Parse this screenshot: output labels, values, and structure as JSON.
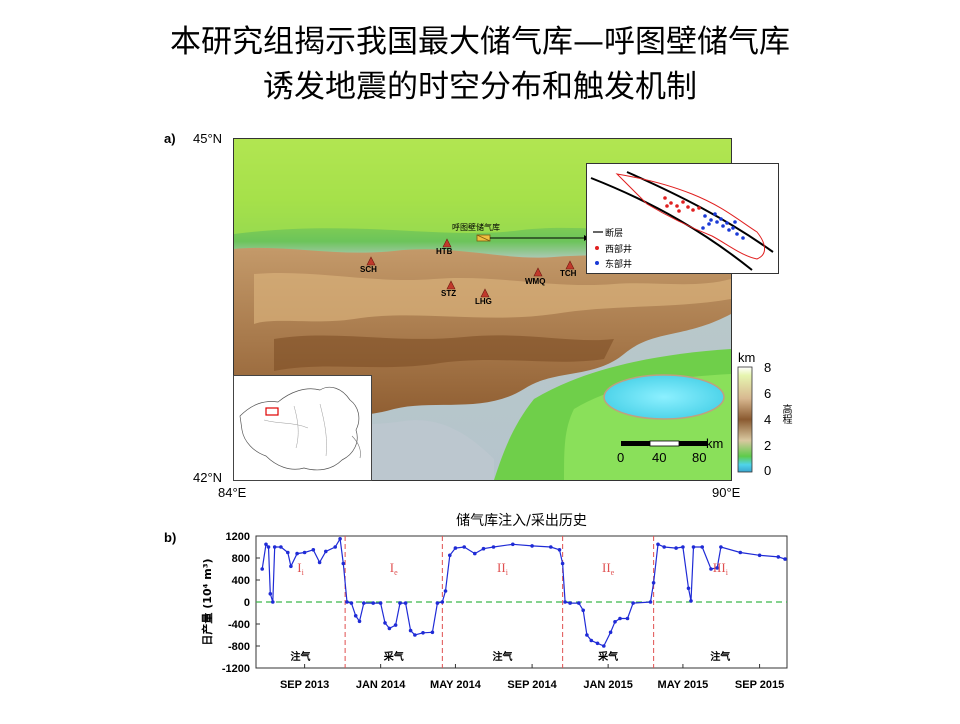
{
  "title": {
    "line1": "本研究组揭示我国最大储气库—呼图壁储气库",
    "line2": "诱发地震的时空分布和触发机制"
  },
  "panel_a": {
    "label": "a)",
    "lat_top": "45°N",
    "lat_bottom": "42°N",
    "lon_left": "84°E",
    "lon_right": "90°E",
    "reservoir_label": "呼图壁储气库",
    "stations": [
      {
        "code": "SCH"
      },
      {
        "code": "HTB"
      },
      {
        "code": "STZ"
      },
      {
        "code": "LHG"
      },
      {
        "code": "WMQ"
      },
      {
        "code": "TCH"
      }
    ],
    "inset_legend": {
      "fault": "断层",
      "west_wells": "西部井",
      "east_wells": "东部井"
    },
    "elevation_bar": {
      "unit": "km",
      "title": "高程",
      "ticks": [
        "8",
        "6",
        "4",
        "2",
        "0"
      ]
    },
    "scale_bar": {
      "unit": "km",
      "ticks": [
        "0",
        "40",
        "80"
      ]
    },
    "colors": {
      "station": "#c0392b",
      "west_wells": "#e02020",
      "east_wells": "#1a3ad6",
      "lake": "#66e0f0"
    }
  },
  "panel_b": {
    "label": "b)",
    "title": "储气库注入/采出历史",
    "ylabel": "日产量 (10⁴ m³)",
    "phase_labels": [
      "注气",
      "采气",
      "注气",
      "采气",
      "注气"
    ],
    "cycle_labels": [
      {
        "main": "I",
        "sub": "i"
      },
      {
        "main": "I",
        "sub": "e"
      },
      {
        "main": "II",
        "sub": "i"
      },
      {
        "main": "II",
        "sub": "e"
      },
      {
        "main": "III",
        "sub": "i"
      }
    ]
  },
  "chart_data": {
    "type": "line",
    "title": "储气库注入/采出历史",
    "xlabel": "",
    "ylabel": "日产量 (10⁴ m³)",
    "ylim": [
      -1200,
      1200
    ],
    "yticks": [
      "1200",
      "800",
      "400",
      "0",
      "-400",
      "-800",
      "-1200"
    ],
    "xticks": [
      "SEP 2013",
      "JAN 2014",
      "MAY 2014",
      "SEP 2014",
      "JAN 2015",
      "MAY 2015",
      "SEP 2015"
    ],
    "xlim": [
      "2013-06-15",
      "2015-10-15"
    ],
    "zero_line_color": "#3cb84a",
    "divider_color": "#e05050",
    "series_color": "#1f2bd6",
    "dividers": [
      "2013-11-05",
      "2014-04-10",
      "2014-10-20",
      "2015-03-15"
    ],
    "series": [
      {
        "values": [
          [
            "2013-06-25",
            600
          ],
          [
            "2013-07-01",
            1050
          ],
          [
            "2013-07-05",
            1000
          ],
          [
            "2013-07-08",
            150
          ],
          [
            "2013-07-12",
            0
          ],
          [
            "2013-07-15",
            1000
          ],
          [
            "2013-07-25",
            1000
          ],
          [
            "2013-08-05",
            900
          ],
          [
            "2013-08-10",
            650
          ],
          [
            "2013-08-20",
            880
          ],
          [
            "2013-09-01",
            900
          ],
          [
            "2013-09-15",
            950
          ],
          [
            "2013-09-25",
            720
          ],
          [
            "2013-10-05",
            920
          ],
          [
            "2013-10-20",
            1000
          ],
          [
            "2013-10-28",
            1150
          ],
          [
            "2013-11-02",
            700
          ],
          [
            "2013-11-08",
            0
          ],
          [
            "2013-11-15",
            -20
          ],
          [
            "2013-11-22",
            -250
          ],
          [
            "2013-11-28",
            -350
          ],
          [
            "2013-12-05",
            -20
          ],
          [
            "2013-12-20",
            -20
          ],
          [
            "2014-01-01",
            -20
          ],
          [
            "2014-01-08",
            -380
          ],
          [
            "2014-01-15",
            -480
          ],
          [
            "2014-01-25",
            -420
          ],
          [
            "2014-02-01",
            -20
          ],
          [
            "2014-02-10",
            -20
          ],
          [
            "2014-02-18",
            -520
          ],
          [
            "2014-02-25",
            -600
          ],
          [
            "2014-03-10",
            -560
          ],
          [
            "2014-03-25",
            -550
          ],
          [
            "2014-04-02",
            -20
          ],
          [
            "2014-04-10",
            0
          ],
          [
            "2014-04-15",
            200
          ],
          [
            "2014-04-22",
            850
          ],
          [
            "2014-05-01",
            980
          ],
          [
            "2014-05-15",
            1000
          ],
          [
            "2014-06-01",
            880
          ],
          [
            "2014-06-15",
            970
          ],
          [
            "2014-07-01",
            1000
          ],
          [
            "2014-08-01",
            1050
          ],
          [
            "2014-09-01",
            1020
          ],
          [
            "2014-10-01",
            1000
          ],
          [
            "2014-10-15",
            950
          ],
          [
            "2014-10-20",
            700
          ],
          [
            "2014-10-24",
            0
          ],
          [
            "2014-11-01",
            -20
          ],
          [
            "2014-11-15",
            -20
          ],
          [
            "2014-11-22",
            -150
          ],
          [
            "2014-11-28",
            -600
          ],
          [
            "2014-12-05",
            -700
          ],
          [
            "2014-12-15",
            -750
          ],
          [
            "2014-12-25",
            -800
          ],
          [
            "2015-01-05",
            -550
          ],
          [
            "2015-01-12",
            -360
          ],
          [
            "2015-01-20",
            -300
          ],
          [
            "2015-02-01",
            -300
          ],
          [
            "2015-02-10",
            -20
          ],
          [
            "2015-03-10",
            0
          ],
          [
            "2015-03-15",
            350
          ],
          [
            "2015-03-22",
            1050
          ],
          [
            "2015-04-01",
            1000
          ],
          [
            "2015-04-20",
            980
          ],
          [
            "2015-05-01",
            1000
          ],
          [
            "2015-05-10",
            250
          ],
          [
            "2015-05-14",
            20
          ],
          [
            "2015-05-18",
            1000
          ],
          [
            "2015-06-01",
            1000
          ],
          [
            "2015-06-15",
            600
          ],
          [
            "2015-06-25",
            620
          ],
          [
            "2015-07-01",
            1000
          ],
          [
            "2015-08-01",
            900
          ],
          [
            "2015-09-01",
            850
          ],
          [
            "2015-10-01",
            820
          ],
          [
            "2015-10-12",
            780
          ]
        ]
      }
    ]
  }
}
